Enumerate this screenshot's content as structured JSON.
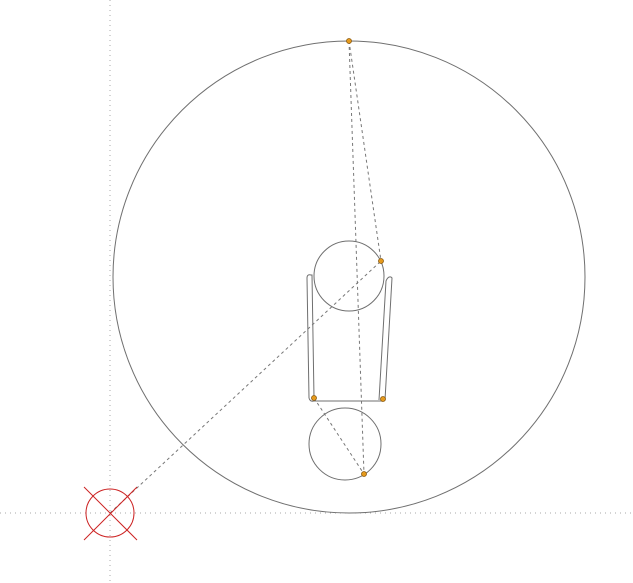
{
  "diagram": {
    "description_tag": "cad-sketch",
    "colors": {
      "background": "#ffffff",
      "guide": "#a9a9a9",
      "geometry": "#6f6f6f",
      "construction": "#777777",
      "point_fill": "#e69a1c",
      "point_stroke": "#8a5a10",
      "origin": "#cc2222"
    },
    "elements": {
      "large_circle": "large-circle",
      "upper_small_circle": "upper-small-circle",
      "lower_small_circle": "lower-small-circle",
      "left_post": "left-post",
      "right_post": "right-post",
      "bottom_bar": "bottom-bar"
    },
    "point_count": 5
  }
}
